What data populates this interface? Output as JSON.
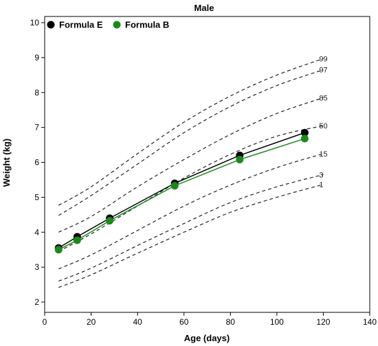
{
  "chart_data": {
    "type": "line",
    "title": "Male",
    "xlabel": "Age (days)",
    "ylabel": "Weight (kg)",
    "xlim": [
      0,
      140
    ],
    "ylim": [
      2,
      10
    ],
    "xticks": [
      0,
      20,
      40,
      60,
      80,
      100,
      120,
      140
    ],
    "yticks": [
      2,
      3,
      4,
      5,
      6,
      7,
      8,
      9,
      10
    ],
    "grid": false,
    "legend_position": "top-left",
    "series": [
      {
        "name": "Formula E",
        "color": "#000000",
        "x": [
          6,
          14,
          28,
          56,
          84,
          112
        ],
        "y": [
          3.55,
          3.87,
          4.4,
          5.4,
          6.2,
          6.85
        ]
      },
      {
        "name": "Formula B",
        "color": "#1a8a1a",
        "x": [
          6,
          14,
          28,
          56,
          84,
          112
        ],
        "y": [
          3.5,
          3.77,
          4.33,
          5.33,
          6.08,
          6.68
        ]
      }
    ],
    "reference_curves": [
      {
        "label": "99",
        "x": [
          6,
          20,
          40,
          60,
          80,
          100,
          120
        ],
        "y": [
          4.77,
          5.3,
          6.25,
          7.15,
          7.9,
          8.5,
          8.97
        ]
      },
      {
        "label": "97",
        "x": [
          6,
          20,
          40,
          60,
          80,
          100,
          120
        ],
        "y": [
          4.48,
          5.05,
          5.95,
          6.85,
          7.6,
          8.2,
          8.65
        ]
      },
      {
        "label": "85",
        "x": [
          6,
          20,
          40,
          60,
          80,
          100,
          120
        ],
        "y": [
          4.0,
          4.45,
          5.3,
          6.08,
          6.8,
          7.4,
          7.85
        ]
      },
      {
        "label": "50",
        "x": [
          6,
          20,
          40,
          60,
          80,
          100,
          120
        ],
        "y": [
          3.45,
          3.95,
          4.75,
          5.55,
          6.23,
          6.75,
          7.05
        ]
      },
      {
        "label": "15",
        "x": [
          6,
          20,
          40,
          60,
          80,
          100,
          120
        ],
        "y": [
          2.95,
          3.35,
          4.05,
          4.75,
          5.35,
          5.85,
          6.25
        ]
      },
      {
        "label": "3",
        "x": [
          6,
          20,
          40,
          60,
          80,
          100,
          120
        ],
        "y": [
          2.6,
          2.97,
          3.62,
          4.25,
          4.85,
          5.3,
          5.65
        ]
      },
      {
        "label": "1",
        "x": [
          6,
          20,
          40,
          60,
          80,
          100,
          120
        ],
        "y": [
          2.42,
          2.78,
          3.4,
          4.0,
          4.57,
          5.0,
          5.37
        ]
      }
    ]
  }
}
